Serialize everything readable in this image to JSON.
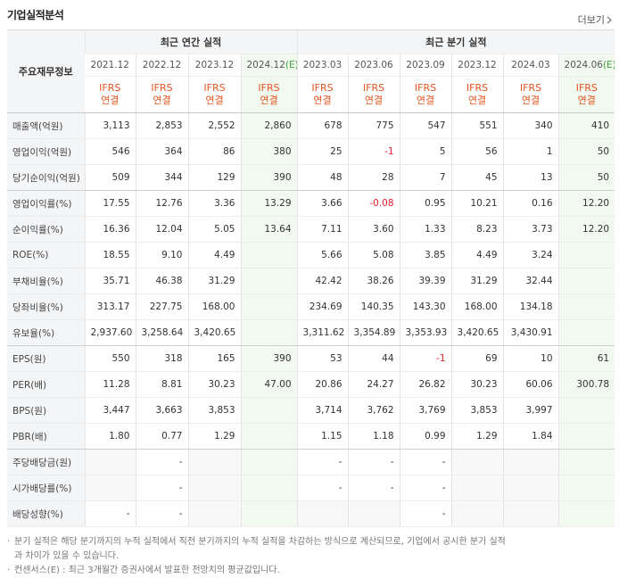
{
  "title": "기업실적분석",
  "more": "더보기",
  "table": {
    "corner": "주요재무정보",
    "groups": [
      {
        "label": "최근 연간 실적",
        "span": 4
      },
      {
        "label": "최근 분기 실적",
        "span": 6
      }
    ],
    "periods": [
      {
        "date": "2021.12"
      },
      {
        "date": "2022.12"
      },
      {
        "date": "2023.12"
      },
      {
        "date": "2024.12",
        "estimate": "(E)"
      },
      {
        "date": "2023.03"
      },
      {
        "date": "2023.06"
      },
      {
        "date": "2023.09"
      },
      {
        "date": "2023.12"
      },
      {
        "date": "2024.03"
      },
      {
        "date": "2024.06",
        "estimate": "(E)"
      }
    ],
    "standards": [
      [
        "IFRS",
        "연결"
      ],
      [
        "IFRS",
        "연결"
      ],
      [
        "IFRS",
        "연결"
      ],
      [
        "IFRS",
        "연결"
      ],
      [
        "IFRS",
        "연결"
      ],
      [
        "IFRS",
        "연결"
      ],
      [
        "IFRS",
        "연결"
      ],
      [
        "IFRS",
        "연결"
      ],
      [
        "IFRS",
        "연결"
      ],
      [
        "IFRS",
        "연결"
      ]
    ],
    "rows": [
      {
        "label": "매출액(억원)",
        "cells": [
          "3,113",
          "2,853",
          "2,552",
          "2,860",
          "678",
          "775",
          "547",
          "551",
          "340",
          "410"
        ]
      },
      {
        "label": "영업이익(억원)",
        "cells": [
          "546",
          "364",
          "86",
          "380",
          "25",
          "-1",
          "5",
          "56",
          "1",
          "50"
        ]
      },
      {
        "label": "당기순이익(억원)",
        "cells": [
          "509",
          "344",
          "129",
          "390",
          "48",
          "28",
          "7",
          "45",
          "13",
          "50"
        ]
      },
      {
        "label": "영업이익률(%)",
        "cells": [
          "17.55",
          "12.76",
          "3.36",
          "13.29",
          "3.66",
          "-0.08",
          "0.95",
          "10.21",
          "0.16",
          "12.20"
        ]
      },
      {
        "label": "순이익률(%)",
        "cells": [
          "16.36",
          "12.04",
          "5.05",
          "13.64",
          "7.11",
          "3.60",
          "1.33",
          "8.23",
          "3.73",
          "12.20"
        ]
      },
      {
        "label": "ROE(%)",
        "cells": [
          "18.55",
          "9.10",
          "4.49",
          null,
          "5.66",
          "5.08",
          "3.85",
          "4.49",
          "3.24",
          null
        ]
      },
      {
        "label": "부채비율(%)",
        "cells": [
          "35.71",
          "46.38",
          "31.29",
          null,
          "42.42",
          "38.26",
          "39.39",
          "31.29",
          "32.44",
          null
        ]
      },
      {
        "label": "당좌비율(%)",
        "cells": [
          "313.17",
          "227.75",
          "168.00",
          null,
          "234.69",
          "140.35",
          "143.30",
          "168.00",
          "134.18",
          null
        ]
      },
      {
        "label": "유보율(%)",
        "cells": [
          "2,937.60",
          "3,258.64",
          "3,420.65",
          null,
          "3,311.62",
          "3,354.89",
          "3,353.93",
          "3,420.65",
          "3,430.91",
          null
        ]
      },
      {
        "label": "EPS(원)",
        "cells": [
          "550",
          "318",
          "165",
          "390",
          "53",
          "44",
          "-1",
          "69",
          "10",
          "61"
        ]
      },
      {
        "label": "PER(배)",
        "cells": [
          "11.28",
          "8.81",
          "30.23",
          "47.00",
          "20.86",
          "24.27",
          "26.82",
          "30.23",
          "60.06",
          "300.78"
        ]
      },
      {
        "label": "BPS(원)",
        "cells": [
          "3,447",
          "3,663",
          "3,853",
          null,
          "3,714",
          "3,762",
          "3,769",
          "3,853",
          "3,997",
          null
        ]
      },
      {
        "label": "PBR(배)",
        "cells": [
          "1.80",
          "0.77",
          "1.29",
          null,
          "1.15",
          "1.18",
          "0.99",
          "1.29",
          "1.84",
          null
        ]
      },
      {
        "label": "주당배당금(원)",
        "cells": [
          null,
          "-",
          null,
          null,
          "-",
          "-",
          "-",
          null,
          null,
          null
        ]
      },
      {
        "label": "시가배당률(%)",
        "cells": [
          null,
          "-",
          null,
          null,
          "-",
          "-",
          "-",
          null,
          null,
          null
        ]
      },
      {
        "label": "배당성향(%)",
        "cells": [
          "-",
          "-",
          null,
          null,
          null,
          null,
          "-",
          null,
          null,
          null
        ]
      }
    ]
  },
  "notes": [
    "분기 실적은 해당 분기까지의 누적 실적에서 직전 분기까지의 누적 실적을 차감하는 방식으로 계산되므로, 기업에서 공시한 분기 실적과 차이가 있을 수 있습니다.",
    "컨센서스(E) : 최근 3개월간 증권사에서 발표한 전망치의 평균값입니다."
  ]
}
